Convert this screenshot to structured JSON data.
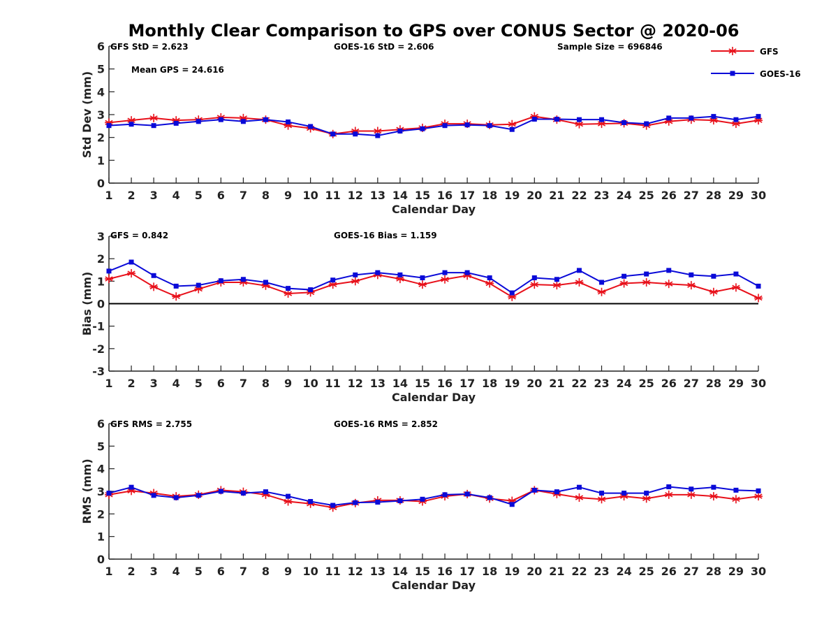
{
  "title": "Monthly Clear Comparison to GPS over CONUS Sector @ 2020-06",
  "colors": {
    "gfs": "#e8101a",
    "goes": "#0a0ad8",
    "axis": "#222222"
  },
  "legend": {
    "placement": "top-right",
    "items": [
      "GFS",
      "GOES-16"
    ]
  },
  "chart_data": [
    {
      "type": "line",
      "id": "std",
      "xlabel": "Calendar Day",
      "ylabel": "Std Dev (mm)",
      "ylim": [
        0,
        6
      ],
      "xlim": [
        1,
        30
      ],
      "yticks": [
        0,
        1,
        2,
        3,
        4,
        5,
        6
      ],
      "annotations": [
        "GFS StD = 2.623",
        "GOES-16 StD = 2.606",
        "Sample Size = 696846",
        "Mean GPS = 24.616"
      ],
      "x": [
        1,
        2,
        3,
        4,
        5,
        6,
        7,
        8,
        9,
        10,
        11,
        12,
        13,
        14,
        15,
        16,
        17,
        18,
        19,
        20,
        21,
        22,
        23,
        24,
        25,
        26,
        27,
        28,
        29,
        30
      ],
      "series": [
        {
          "name": "GFS",
          "marker": "star",
          "values": [
            2.65,
            2.75,
            2.85,
            2.75,
            2.78,
            2.88,
            2.85,
            2.78,
            2.52,
            2.4,
            2.15,
            2.28,
            2.28,
            2.35,
            2.42,
            2.6,
            2.6,
            2.55,
            2.58,
            2.92,
            2.78,
            2.58,
            2.6,
            2.62,
            2.52,
            2.7,
            2.78,
            2.75,
            2.6,
            2.75
          ]
        },
        {
          "name": "GOES-16",
          "marker": "square",
          "values": [
            2.52,
            2.58,
            2.52,
            2.62,
            2.7,
            2.78,
            2.7,
            2.78,
            2.68,
            2.48,
            2.15,
            2.15,
            2.08,
            2.28,
            2.38,
            2.52,
            2.55,
            2.52,
            2.35,
            2.8,
            2.8,
            2.78,
            2.78,
            2.65,
            2.6,
            2.85,
            2.85,
            2.92,
            2.78,
            2.92
          ]
        }
      ]
    },
    {
      "type": "line",
      "id": "bias",
      "xlabel": "Calendar Day",
      "ylabel": "Bias (mm)",
      "ylim": [
        -3,
        3
      ],
      "xlim": [
        1,
        30
      ],
      "yticks": [
        -3,
        -2,
        -1,
        0,
        1,
        2,
        3
      ],
      "zero_line": true,
      "annotations": [
        "GFS = 0.842",
        "GOES-16 Bias = 1.159"
      ],
      "x": [
        1,
        2,
        3,
        4,
        5,
        6,
        7,
        8,
        9,
        10,
        11,
        12,
        13,
        14,
        15,
        16,
        17,
        18,
        19,
        20,
        21,
        22,
        23,
        24,
        25,
        26,
        27,
        28,
        29,
        30
      ],
      "series": [
        {
          "name": "GFS",
          "marker": "star",
          "values": [
            1.1,
            1.35,
            0.75,
            0.32,
            0.65,
            0.95,
            0.95,
            0.8,
            0.45,
            0.5,
            0.85,
            1.0,
            1.28,
            1.1,
            0.85,
            1.08,
            1.25,
            0.9,
            0.3,
            0.85,
            0.82,
            0.95,
            0.52,
            0.9,
            0.95,
            0.88,
            0.82,
            0.52,
            0.72,
            0.25
          ]
        },
        {
          "name": "GOES-16",
          "marker": "square",
          "values": [
            1.45,
            1.85,
            1.25,
            0.78,
            0.82,
            1.02,
            1.08,
            0.95,
            0.68,
            0.62,
            1.05,
            1.28,
            1.38,
            1.28,
            1.15,
            1.38,
            1.38,
            1.15,
            0.48,
            1.15,
            1.08,
            1.48,
            0.95,
            1.22,
            1.32,
            1.48,
            1.28,
            1.22,
            1.32,
            0.78
          ]
        }
      ]
    },
    {
      "type": "line",
      "id": "rms",
      "xlabel": "Calendar Day",
      "ylabel": "RMS (mm)",
      "ylim": [
        0,
        6
      ],
      "xlim": [
        1,
        30
      ],
      "yticks": [
        0,
        1,
        2,
        3,
        4,
        5,
        6
      ],
      "annotations": [
        "GFS RMS = 2.755",
        "GOES-16 RMS = 2.852"
      ],
      "x": [
        1,
        2,
        3,
        4,
        5,
        6,
        7,
        8,
        9,
        10,
        11,
        12,
        13,
        14,
        15,
        16,
        17,
        18,
        19,
        20,
        21,
        22,
        23,
        24,
        25,
        26,
        27,
        28,
        29,
        30
      ],
      "series": [
        {
          "name": "GFS",
          "marker": "star",
          "values": [
            2.85,
            3.02,
            2.92,
            2.78,
            2.85,
            3.05,
            2.98,
            2.85,
            2.55,
            2.45,
            2.28,
            2.48,
            2.6,
            2.6,
            2.55,
            2.78,
            2.88,
            2.68,
            2.58,
            3.05,
            2.88,
            2.72,
            2.65,
            2.78,
            2.68,
            2.85,
            2.85,
            2.78,
            2.65,
            2.78
          ]
        },
        {
          "name": "GOES-16",
          "marker": "square",
          "values": [
            2.92,
            3.18,
            2.82,
            2.72,
            2.82,
            3.0,
            2.92,
            2.98,
            2.78,
            2.55,
            2.38,
            2.5,
            2.52,
            2.58,
            2.65,
            2.85,
            2.88,
            2.72,
            2.42,
            3.05,
            2.98,
            3.18,
            2.92,
            2.92,
            2.92,
            3.2,
            3.1,
            3.18,
            3.05,
            3.02
          ]
        }
      ]
    }
  ]
}
